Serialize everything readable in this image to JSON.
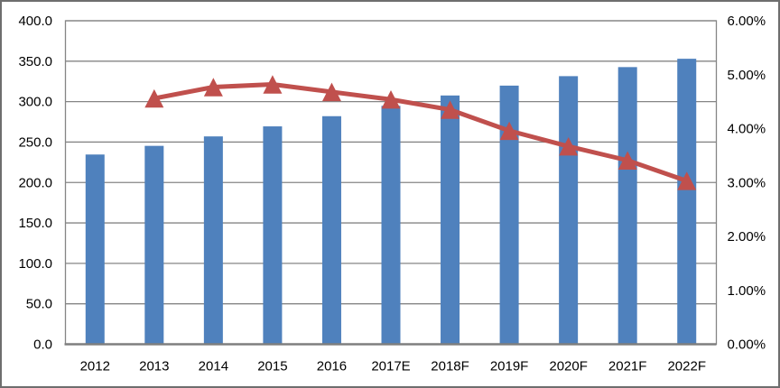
{
  "chart_data": {
    "type": "bar",
    "subtype": "bar-line-combo",
    "title": "",
    "legend": "none",
    "grid": true,
    "categories": [
      "2012",
      "2013",
      "2014",
      "2015",
      "2016",
      "2017E",
      "2018F",
      "2019F",
      "2020F",
      "2021F",
      "2022F"
    ],
    "series": [
      {
        "name": "market-size-bars",
        "type": "bar",
        "axis": "left",
        "color": "#4F81BD",
        "values": [
          234.6,
          245.3,
          257.0,
          269.4,
          282.0,
          294.8,
          307.6,
          319.8,
          331.5,
          342.7,
          353.0
        ]
      },
      {
        "name": "growth-rate-line",
        "type": "line",
        "axis": "right",
        "color": "#C0504D",
        "marker": "triangle",
        "values": [
          null,
          4.56,
          4.77,
          4.82,
          4.68,
          4.54,
          4.35,
          3.96,
          3.67,
          3.41,
          3.03
        ]
      }
    ],
    "left_axis": {
      "min": 0,
      "max": 400,
      "step": 50,
      "tick_labels": [
        "0.0",
        "50.0",
        "100.0",
        "150.0",
        "200.0",
        "250.0",
        "300.0",
        "350.0",
        "400.0"
      ]
    },
    "right_axis": {
      "min": 0,
      "max": 6,
      "step": 1,
      "tick_labels": [
        "0.00%",
        "1.00%",
        "2.00%",
        "3.00%",
        "4.00%",
        "5.00%",
        "6.00%"
      ]
    },
    "colors": {
      "bar": "#4F81BD",
      "line": "#C0504D",
      "marker": "#C0504D",
      "gridline": "#858585",
      "plot_border": "#858585",
      "axis_line": "#7f7f7f",
      "frame_border": "#6e6e6e",
      "text": "#000000",
      "background": "#ffffff"
    }
  }
}
